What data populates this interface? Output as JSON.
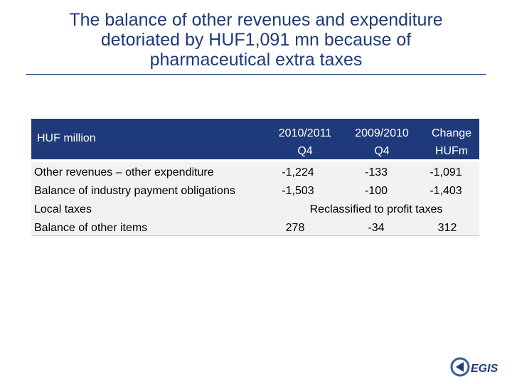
{
  "title": {
    "line1": "The balance of other revenues and expenditure",
    "line2": "detoriated by HUF1,091 mn because of",
    "line3": "pharmaceutical extra taxes"
  },
  "table": {
    "header_label": "HUF million",
    "columns": [
      {
        "line1": "2010/2011",
        "line2": "Q4"
      },
      {
        "line1": "2009/2010",
        "line2": "Q4"
      },
      {
        "line1": "Change",
        "line2": "HUFm"
      }
    ],
    "rows": [
      {
        "label": "Other revenues – other expenditure",
        "values": [
          "-1,224",
          "-133",
          "-1,091"
        ]
      },
      {
        "label": "Balance of industry payment obligations",
        "values": [
          "-1,503",
          "-100",
          "-1,403"
        ]
      },
      {
        "label": "Local taxes",
        "note": "Reclassified to profit taxes"
      },
      {
        "label": "Balance of other items",
        "values": [
          "278",
          "-34",
          "312"
        ]
      }
    ]
  },
  "logo": {
    "text": "EGIS"
  },
  "colors": {
    "brand": "#1f3a7a",
    "band": "#f2f2f2"
  }
}
